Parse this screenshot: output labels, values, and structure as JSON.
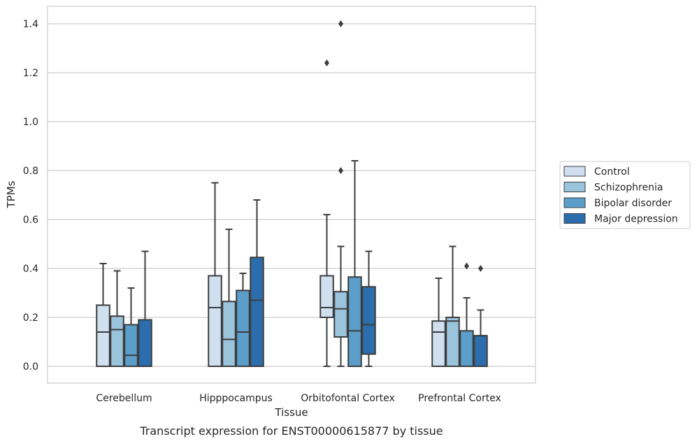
{
  "chart_data": {
    "type": "boxplot",
    "caption": "Transcript expression for ENST00000615877 by tissue",
    "xlabel": "Tissue",
    "ylabel": "TPMs",
    "ylim": [
      -0.07,
      1.47
    ],
    "yticks": [
      0.0,
      0.2,
      0.4,
      0.6,
      0.8,
      1.0,
      1.2,
      1.4
    ],
    "ytick_labels": [
      "0.0",
      "0.2",
      "0.4",
      "0.6",
      "0.8",
      "1.0",
      "1.2",
      "1.4"
    ],
    "grid": "horizontal",
    "legend_position": "right",
    "categories": [
      "Cerebellum",
      "Hipppocampus",
      "Orbitofontal Cortex",
      "Prefrontal Cortex"
    ],
    "series": [
      {
        "name": "Control",
        "color": "#d0e0f1",
        "boxes": [
          {
            "whislo": 0.0,
            "q1": 0.0,
            "med": 0.14,
            "q3": 0.25,
            "whishi": 0.42,
            "fliers": []
          },
          {
            "whislo": 0.0,
            "q1": 0.0,
            "med": 0.24,
            "q3": 0.37,
            "whishi": 0.75,
            "fliers": []
          },
          {
            "whislo": 0.0,
            "q1": 0.2,
            "med": 0.24,
            "q3": 0.37,
            "whishi": 0.62,
            "fliers": [
              1.24
            ]
          },
          {
            "whislo": 0.0,
            "q1": 0.0,
            "med": 0.14,
            "q3": 0.185,
            "whishi": 0.36,
            "fliers": []
          }
        ]
      },
      {
        "name": "Schizophrenia",
        "color": "#9ac3dc",
        "boxes": [
          {
            "whislo": 0.0,
            "q1": 0.0,
            "med": 0.15,
            "q3": 0.205,
            "whishi": 0.39,
            "fliers": []
          },
          {
            "whislo": 0.0,
            "q1": 0.0,
            "med": 0.11,
            "q3": 0.265,
            "whishi": 0.56,
            "fliers": []
          },
          {
            "whislo": 0.0,
            "q1": 0.12,
            "med": 0.235,
            "q3": 0.305,
            "whishi": 0.49,
            "fliers": [
              0.8,
              1.4
            ]
          },
          {
            "whislo": 0.0,
            "q1": 0.0,
            "med": 0.185,
            "q3": 0.2,
            "whishi": 0.49,
            "fliers": []
          }
        ]
      },
      {
        "name": "Bipolar disorder",
        "color": "#5a9ec9",
        "boxes": [
          {
            "whislo": 0.0,
            "q1": 0.0,
            "med": 0.045,
            "q3": 0.17,
            "whishi": 0.32,
            "fliers": []
          },
          {
            "whislo": 0.0,
            "q1": 0.0,
            "med": 0.14,
            "q3": 0.31,
            "whishi": 0.38,
            "fliers": []
          },
          {
            "whislo": 0.0,
            "q1": 0.0,
            "med": 0.145,
            "q3": 0.365,
            "whishi": 0.84,
            "fliers": []
          },
          {
            "whislo": 0.0,
            "q1": 0.0,
            "med": 0.0,
            "q3": 0.145,
            "whishi": 0.28,
            "fliers": [
              0.41
            ]
          }
        ]
      },
      {
        "name": "Major depression",
        "color": "#2c6ead",
        "boxes": [
          {
            "whislo": 0.0,
            "q1": 0.0,
            "med": 0.19,
            "q3": 0.19,
            "whishi": 0.47,
            "fliers": []
          },
          {
            "whislo": 0.0,
            "q1": 0.0,
            "med": 0.27,
            "q3": 0.445,
            "whishi": 0.68,
            "fliers": []
          },
          {
            "whislo": 0.0,
            "q1": 0.05,
            "med": 0.17,
            "q3": 0.325,
            "whishi": 0.47,
            "fliers": []
          },
          {
            "whislo": 0.0,
            "q1": 0.0,
            "med": 0.125,
            "q3": 0.125,
            "whishi": 0.23,
            "fliers": [
              0.4
            ]
          }
        ]
      }
    ]
  }
}
